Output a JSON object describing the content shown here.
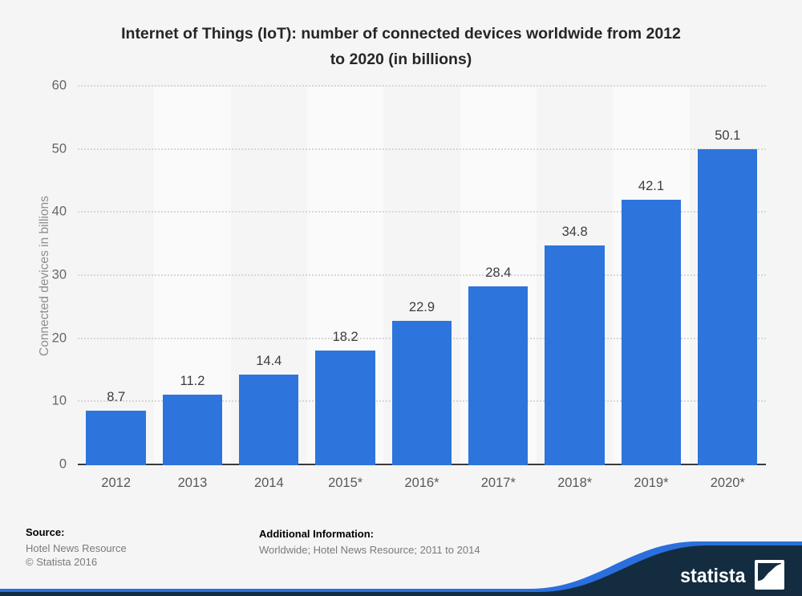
{
  "page": {
    "background": "#f5f5f5"
  },
  "title": {
    "line1": "Internet of Things (IoT): number of connected devices worldwide from 2012",
    "line2": "to 2020 (in billions)"
  },
  "chart_data": {
    "type": "bar",
    "title": "Internet of Things (IoT): number of connected devices worldwide from 2012 to 2020 (in billions)",
    "categories": [
      "2012",
      "2013",
      "2014",
      "2015*",
      "2016*",
      "2017*",
      "2018*",
      "2019*",
      "2020*"
    ],
    "values": [
      8.7,
      11.2,
      14.4,
      18.2,
      22.9,
      28.4,
      34.8,
      42.1,
      50.1
    ],
    "xlabel": "",
    "ylabel": "Connected devices in billions",
    "ylim": [
      0,
      60
    ],
    "yticks": [
      0,
      10,
      20,
      30,
      40,
      50,
      60
    ],
    "grid": "horizontal-dotted",
    "legend": "none",
    "bar_color": "#2d74dc",
    "stripe_color": "#fafafa"
  },
  "footer": {
    "source_label": "Source:",
    "source_value": "Hotel News Resource",
    "copyright": "© Statista 2016",
    "additional_label": "Additional Information:",
    "additional_value": "Worldwide; Hotel News Resource; 2011 to 2014"
  },
  "branding": {
    "logo_text": "statista",
    "navy": "#132c40",
    "accent_blue": "#2a6fdd"
  }
}
